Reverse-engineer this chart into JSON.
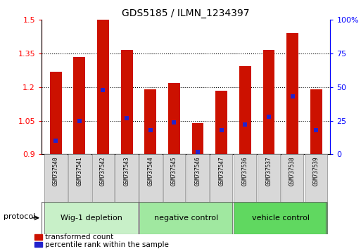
{
  "title": "GDS5185 / ILMN_1234397",
  "samples": [
    "GSM737540",
    "GSM737541",
    "GSM737542",
    "GSM737543",
    "GSM737544",
    "GSM737545",
    "GSM737546",
    "GSM737547",
    "GSM737536",
    "GSM737537",
    "GSM737538",
    "GSM737539"
  ],
  "transformed_counts": [
    1.27,
    1.335,
    1.5,
    1.365,
    1.19,
    1.22,
    1.04,
    1.185,
    1.295,
    1.365,
    1.44,
    1.19
  ],
  "percentile_ranks": [
    10,
    25,
    48,
    27,
    18,
    24,
    2,
    18,
    22,
    28,
    43,
    18
  ],
  "groups": [
    {
      "label": "Wig-1 depletion",
      "start": 0,
      "end": 3
    },
    {
      "label": "negative control",
      "start": 4,
      "end": 7
    },
    {
      "label": "vehicle control",
      "start": 8,
      "end": 11
    }
  ],
  "group_colors": [
    "#c8f0c8",
    "#a0e8a0",
    "#60d860"
  ],
  "ylim_left": [
    0.9,
    1.5
  ],
  "left_ticks": [
    0.9,
    1.05,
    1.2,
    1.35,
    1.5
  ],
  "right_ticks": [
    0,
    25,
    50,
    75,
    100
  ],
  "bar_color": "#cc1100",
  "dot_color": "#2222cc",
  "baseline": 0.9,
  "bar_width": 0.5,
  "dot_size": 18,
  "legend_items": [
    {
      "label": "transformed count",
      "color": "#cc1100"
    },
    {
      "label": "percentile rank within the sample",
      "color": "#2222cc"
    }
  ],
  "group_label": "protocol"
}
